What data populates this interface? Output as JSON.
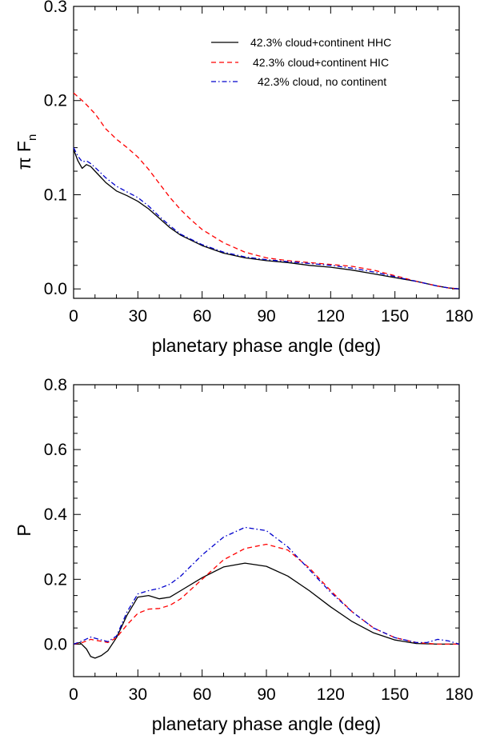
{
  "chart_data": [
    {
      "type": "line",
      "id": "flux",
      "ylabel_symbol": "π F",
      "ylabel_sub": "n",
      "xlabel": "planetary phase angle (deg)",
      "xlim": [
        0,
        180
      ],
      "ylim": [
        -0.01,
        0.3
      ],
      "xticks": [
        0,
        30,
        60,
        90,
        120,
        150,
        180
      ],
      "yticks": [
        0.0,
        0.1,
        0.2,
        0.3
      ],
      "xtick_labels": [
        "0",
        "30",
        "60",
        "90",
        "120",
        "150",
        "180"
      ],
      "ytick_labels": [
        "0.0",
        "0.1",
        "0.2",
        "0.3"
      ],
      "legend_position": "top-right",
      "series": [
        {
          "name": "42.3% cloud+continent HHC",
          "color": "#000000",
          "dash": "solid",
          "x": [
            0,
            2,
            4,
            6,
            8,
            10,
            15,
            20,
            25,
            30,
            35,
            40,
            45,
            50,
            60,
            70,
            80,
            90,
            100,
            110,
            120,
            130,
            140,
            150,
            160,
            170,
            175,
            180
          ],
          "y": [
            0.148,
            0.136,
            0.128,
            0.132,
            0.13,
            0.125,
            0.113,
            0.104,
            0.099,
            0.093,
            0.085,
            0.075,
            0.065,
            0.057,
            0.046,
            0.038,
            0.033,
            0.03,
            0.028,
            0.025,
            0.023,
            0.02,
            0.016,
            0.012,
            0.008,
            0.003,
            0.001,
            0.0
          ]
        },
        {
          "name": "42.3% cloud+continent HIC",
          "color": "#ff0000",
          "dash": "dashed",
          "x": [
            0,
            5,
            10,
            15,
            20,
            25,
            30,
            35,
            40,
            45,
            50,
            55,
            60,
            70,
            80,
            90,
            100,
            110,
            120,
            130,
            140,
            150,
            160,
            170,
            175,
            180
          ],
          "y": [
            0.208,
            0.198,
            0.186,
            0.17,
            0.159,
            0.15,
            0.14,
            0.127,
            0.112,
            0.097,
            0.084,
            0.073,
            0.063,
            0.049,
            0.039,
            0.033,
            0.03,
            0.028,
            0.026,
            0.024,
            0.02,
            0.014,
            0.008,
            0.003,
            0.001,
            0.0
          ]
        },
        {
          "name": "42.3% cloud, no continent",
          "color": "#0000cc",
          "dash": "dashdot",
          "x": [
            0,
            2,
            4,
            6,
            8,
            10,
            15,
            20,
            25,
            30,
            35,
            40,
            45,
            50,
            60,
            70,
            80,
            90,
            100,
            110,
            120,
            130,
            140,
            150,
            160,
            170,
            175,
            180
          ],
          "y": [
            0.15,
            0.141,
            0.135,
            0.136,
            0.133,
            0.129,
            0.118,
            0.109,
            0.103,
            0.097,
            0.088,
            0.077,
            0.067,
            0.058,
            0.047,
            0.039,
            0.034,
            0.031,
            0.029,
            0.027,
            0.025,
            0.022,
            0.018,
            0.013,
            0.008,
            0.003,
            0.001,
            0.0
          ]
        }
      ]
    },
    {
      "type": "line",
      "id": "polarization",
      "ylabel": "P",
      "xlabel": "planetary phase angle (deg)",
      "xlim": [
        0,
        180
      ],
      "ylim": [
        -0.1,
        0.8
      ],
      "xticks": [
        0,
        30,
        60,
        90,
        120,
        150,
        180
      ],
      "yticks": [
        0.0,
        0.2,
        0.4,
        0.6,
        0.8
      ],
      "xtick_labels": [
        "0",
        "30",
        "60",
        "90",
        "120",
        "150",
        "180"
      ],
      "ytick_labels": [
        "0.0",
        "0.2",
        "0.4",
        "0.6",
        "0.8"
      ],
      "series": [
        {
          "name": "42.3% cloud+continent HHC",
          "color": "#000000",
          "dash": "solid",
          "x": [
            0,
            3,
            6,
            8,
            10,
            13,
            16,
            20,
            25,
            30,
            35,
            40,
            45,
            50,
            60,
            70,
            80,
            90,
            100,
            110,
            120,
            130,
            140,
            150,
            160,
            170,
            180
          ],
          "y": [
            0.0,
            0.005,
            -0.015,
            -0.038,
            -0.043,
            -0.035,
            -0.02,
            0.02,
            0.09,
            0.145,
            0.15,
            0.14,
            0.145,
            0.165,
            0.205,
            0.238,
            0.25,
            0.24,
            0.21,
            0.165,
            0.115,
            0.07,
            0.035,
            0.013,
            0.002,
            0.0,
            0.0
          ]
        },
        {
          "name": "42.3% cloud+continent HIC",
          "color": "#ff0000",
          "dash": "dashed",
          "x": [
            0,
            4,
            8,
            12,
            16,
            20,
            25,
            30,
            35,
            40,
            45,
            50,
            60,
            70,
            80,
            90,
            100,
            110,
            120,
            130,
            140,
            150,
            160,
            170,
            180
          ],
          "y": [
            0.0,
            0.005,
            0.015,
            0.01,
            0.005,
            0.02,
            0.06,
            0.095,
            0.108,
            0.11,
            0.12,
            0.14,
            0.2,
            0.26,
            0.295,
            0.308,
            0.29,
            0.235,
            0.165,
            0.1,
            0.05,
            0.02,
            0.005,
            0.0,
            0.0
          ]
        },
        {
          "name": "42.3% cloud, no continent",
          "color": "#0000cc",
          "dash": "dashdot",
          "x": [
            0,
            4,
            8,
            12,
            16,
            20,
            25,
            30,
            35,
            40,
            45,
            50,
            60,
            70,
            80,
            90,
            100,
            110,
            120,
            130,
            140,
            150,
            160,
            165,
            170,
            175,
            180
          ],
          "y": [
            0.0,
            0.01,
            0.022,
            0.015,
            0.008,
            0.025,
            0.1,
            0.155,
            0.165,
            0.172,
            0.185,
            0.21,
            0.275,
            0.33,
            0.36,
            0.35,
            0.3,
            0.23,
            0.16,
            0.1,
            0.05,
            0.02,
            0.005,
            0.005,
            0.015,
            0.01,
            0.0
          ]
        }
      ]
    }
  ]
}
